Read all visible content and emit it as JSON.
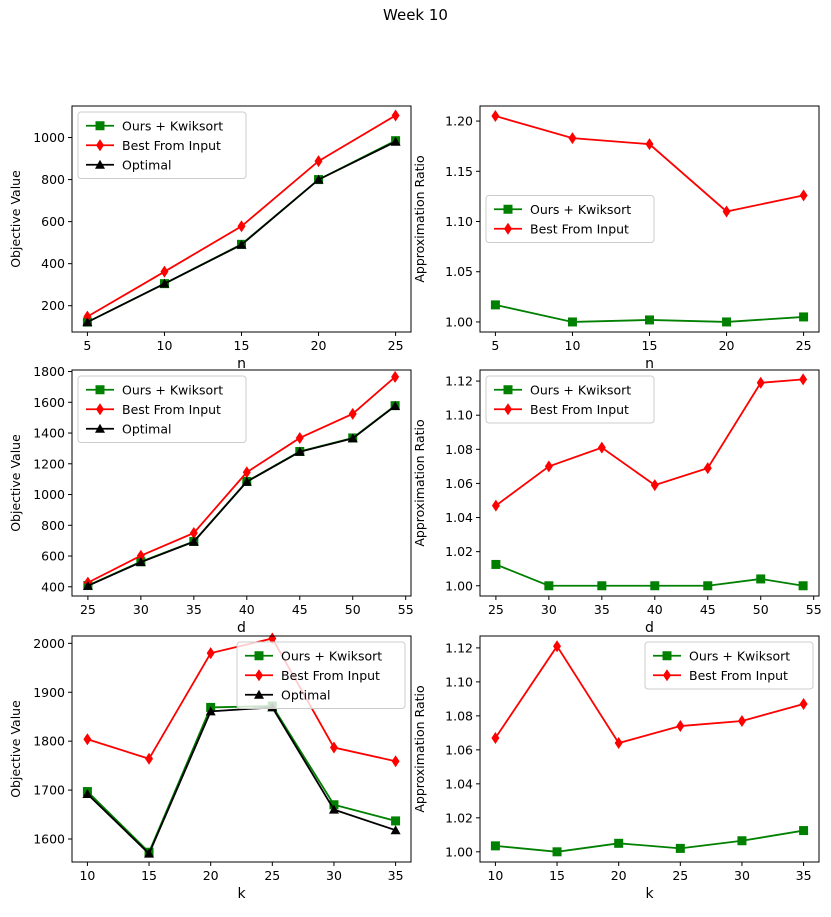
{
  "suptitle": "Week 10",
  "colors": {
    "ours": "#008000",
    "best": "#ff0000",
    "optimal": "#000000"
  },
  "chart_data": [
    {
      "type": "line",
      "id": "n-objective",
      "xlabel": "n",
      "ylabel": "Objective Value",
      "x": [
        5,
        10,
        15,
        20,
        25
      ],
      "xticks": [
        5,
        10,
        15,
        20,
        25
      ],
      "xlim": [
        4,
        26
      ],
      "ylim": [
        75,
        1150
      ],
      "yticks": [
        200,
        400,
        600,
        800,
        1000
      ],
      "legend": "upper-left",
      "series": [
        {
          "name": "Ours + Kwiksort",
          "marker": "square",
          "color": "#008000",
          "values": [
            122,
            305,
            492,
            800,
            985
          ]
        },
        {
          "name": "Best From Input",
          "marker": "diamond",
          "color": "#ff0000",
          "values": [
            148,
            362,
            578,
            888,
            1105
          ]
        },
        {
          "name": "Optimal",
          "marker": "triangle",
          "color": "#000000",
          "values": [
            122,
            305,
            490,
            800,
            980
          ]
        }
      ]
    },
    {
      "type": "line",
      "id": "n-ratio",
      "xlabel": "n",
      "ylabel": "Approximation Ratio",
      "x": [
        5,
        10,
        15,
        20,
        25
      ],
      "xticks": [
        5,
        10,
        15,
        20,
        25
      ],
      "xlim": [
        4,
        26
      ],
      "ylim": [
        0.99,
        1.215
      ],
      "yticks": [
        1.0,
        1.05,
        1.1,
        1.15,
        1.2
      ],
      "ytick_labels": [
        "1.00",
        "1.05",
        "1.10",
        "1.15",
        "1.20"
      ],
      "legend": "center-left",
      "series": [
        {
          "name": "Ours + Kwiksort",
          "marker": "square",
          "color": "#008000",
          "values": [
            1.017,
            1.0,
            1.002,
            1.0,
            1.005
          ]
        },
        {
          "name": "Best From Input",
          "marker": "diamond",
          "color": "#ff0000",
          "values": [
            1.205,
            1.183,
            1.177,
            1.11,
            1.126
          ]
        }
      ]
    },
    {
      "type": "line",
      "id": "d-objective",
      "xlabel": "d",
      "ylabel": "Objective Value",
      "x": [
        25,
        30,
        35,
        40,
        45,
        50,
        54
      ],
      "xticks": [
        25,
        30,
        35,
        40,
        45,
        50,
        55
      ],
      "xlim": [
        23.5,
        55.5
      ],
      "ylim": [
        340,
        1810
      ],
      "yticks": [
        400,
        600,
        800,
        1000,
        1200,
        1400,
        1600,
        1800
      ],
      "legend": "upper-left",
      "series": [
        {
          "name": "Ours + Kwiksort",
          "marker": "square",
          "color": "#008000",
          "values": [
            408,
            563,
            695,
            1085,
            1280,
            1368,
            1578
          ]
        },
        {
          "name": "Best From Input",
          "marker": "diamond",
          "color": "#ff0000",
          "values": [
            427,
            602,
            750,
            1145,
            1368,
            1525,
            1765
          ]
        },
        {
          "name": "Optimal",
          "marker": "triangle",
          "color": "#000000",
          "values": [
            406,
            560,
            693,
            1083,
            1278,
            1365,
            1576
          ]
        }
      ]
    },
    {
      "type": "line",
      "id": "d-ratio",
      "xlabel": "d",
      "ylabel": "Approximation Ratio",
      "x": [
        25,
        30,
        35,
        40,
        45,
        50,
        54
      ],
      "xticks": [
        25,
        30,
        35,
        40,
        45,
        50,
        55
      ],
      "xlim": [
        23.5,
        55.5
      ],
      "ylim": [
        0.994,
        1.1265
      ],
      "yticks": [
        1.0,
        1.02,
        1.04,
        1.06,
        1.08,
        1.1,
        1.12
      ],
      "ytick_labels": [
        "1.00",
        "1.02",
        "1.04",
        "1.06",
        "1.08",
        "1.10",
        "1.12"
      ],
      "legend": "upper-left",
      "series": [
        {
          "name": "Ours + Kwiksort",
          "marker": "square",
          "color": "#008000",
          "values": [
            1.0125,
            1.0,
            1.0,
            1.0,
            1.0,
            1.004,
            1.0
          ]
        },
        {
          "name": "Best From Input",
          "marker": "diamond",
          "color": "#ff0000",
          "values": [
            1.047,
            1.07,
            1.081,
            1.059,
            1.069,
            1.119,
            1.121
          ]
        }
      ]
    },
    {
      "type": "line",
      "id": "k-objective",
      "xlabel": "k",
      "ylabel": "Objective Value",
      "x": [
        10,
        15,
        20,
        25,
        30,
        35
      ],
      "xticks": [
        10,
        15,
        20,
        25,
        30,
        35
      ],
      "xlim": [
        8.75,
        36.25
      ],
      "ylim": [
        1553,
        2015
      ],
      "yticks": [
        1600,
        1700,
        1800,
        1900,
        2000
      ],
      "legend": "upper-right",
      "series": [
        {
          "name": "Ours + Kwiksort",
          "marker": "square",
          "color": "#008000",
          "values": [
            1697,
            1573,
            1869,
            1872,
            1670,
            1637
          ]
        },
        {
          "name": "Best From Input",
          "marker": "diamond",
          "color": "#ff0000",
          "values": [
            1804,
            1764,
            1980,
            2010,
            1787,
            1759
          ]
        },
        {
          "name": "Optimal",
          "marker": "triangle",
          "color": "#000000",
          "values": [
            1692,
            1570,
            1861,
            1869,
            1660,
            1618
          ]
        }
      ]
    },
    {
      "type": "line",
      "id": "k-ratio",
      "xlabel": "k",
      "ylabel": "Approximation Ratio",
      "x": [
        10,
        15,
        20,
        25,
        30,
        35
      ],
      "xticks": [
        10,
        15,
        20,
        25,
        30,
        35
      ],
      "xlim": [
        8.75,
        36.25
      ],
      "ylim": [
        0.994,
        1.127
      ],
      "yticks": [
        1.0,
        1.02,
        1.04,
        1.06,
        1.08,
        1.1,
        1.12
      ],
      "ytick_labels": [
        "1.00",
        "1.02",
        "1.04",
        "1.06",
        "1.08",
        "1.10",
        "1.12"
      ],
      "legend": "upper-right",
      "series": [
        {
          "name": "Ours + Kwiksort",
          "marker": "square",
          "color": "#008000",
          "values": [
            1.0035,
            1.0,
            1.005,
            1.002,
            1.0065,
            1.0125
          ]
        },
        {
          "name": "Best From Input",
          "marker": "diamond",
          "color": "#ff0000",
          "values": [
            1.067,
            1.121,
            1.064,
            1.074,
            1.077,
            1.087
          ]
        }
      ]
    }
  ]
}
